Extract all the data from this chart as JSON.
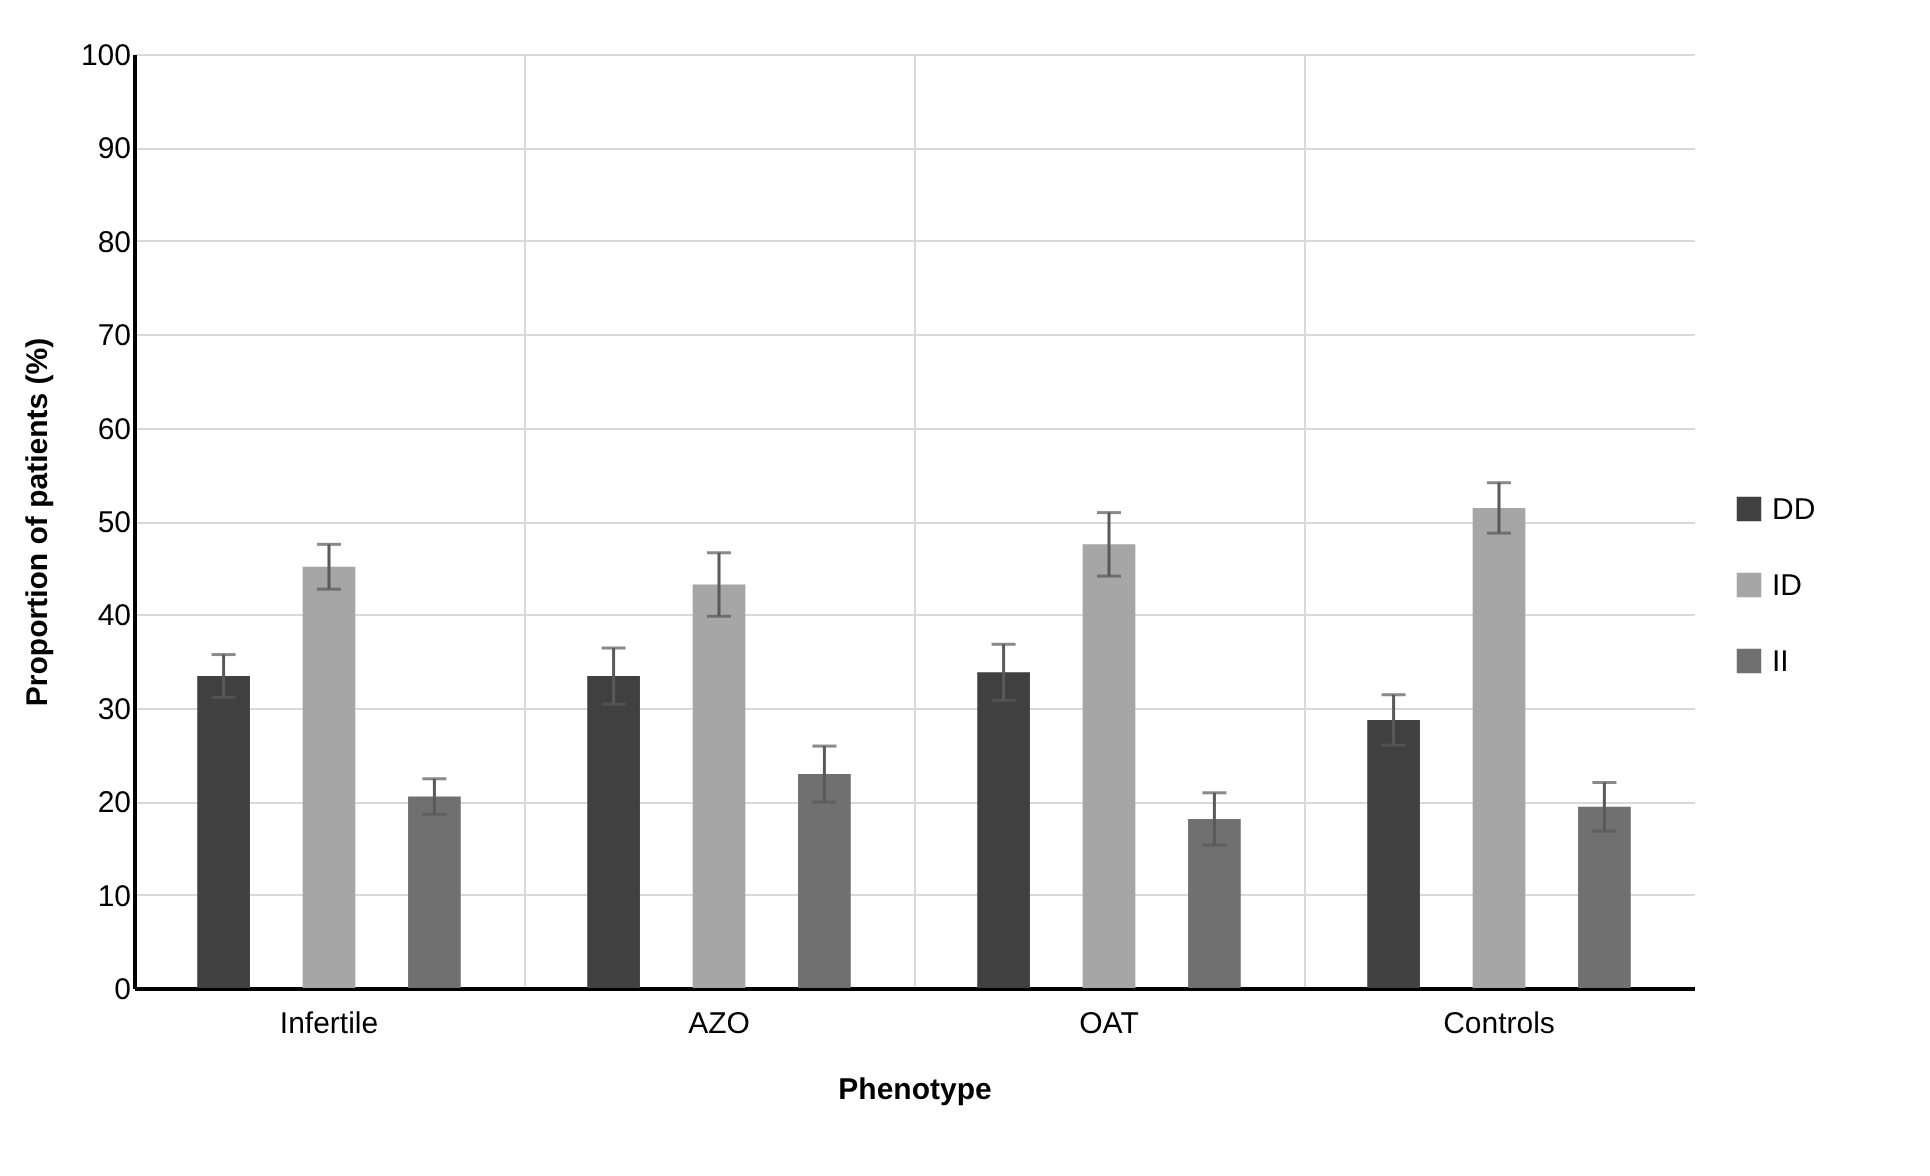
{
  "chart_data": {
    "type": "bar",
    "xlabel": "Phenotype",
    "ylabel": "Proportion of patients (%)",
    "categories": [
      "Infertile",
      "AZO",
      "OAT",
      "Controls"
    ],
    "series": [
      {
        "name": "DD",
        "color": "#404040",
        "values": [
          33.4,
          33.4,
          33.8,
          28.7
        ],
        "errors": [
          2.3,
          3,
          3,
          2.7
        ]
      },
      {
        "name": "ID",
        "color": "#a6a6a6",
        "values": [
          45.1,
          43.2,
          47.5,
          51.4
        ],
        "errors": [
          2.4,
          3.4,
          3.4,
          2.7
        ]
      },
      {
        "name": "II",
        "color": "#707070",
        "values": [
          20.5,
          22.9,
          18.1,
          19.4
        ],
        "errors": [
          1.9,
          3,
          2.8,
          2.6
        ]
      }
    ],
    "ylim": [
      0,
      100
    ],
    "yticks": [
      0,
      10,
      20,
      30,
      40,
      50,
      60,
      70,
      80,
      90,
      100
    ],
    "grid": true,
    "legend": "right"
  }
}
